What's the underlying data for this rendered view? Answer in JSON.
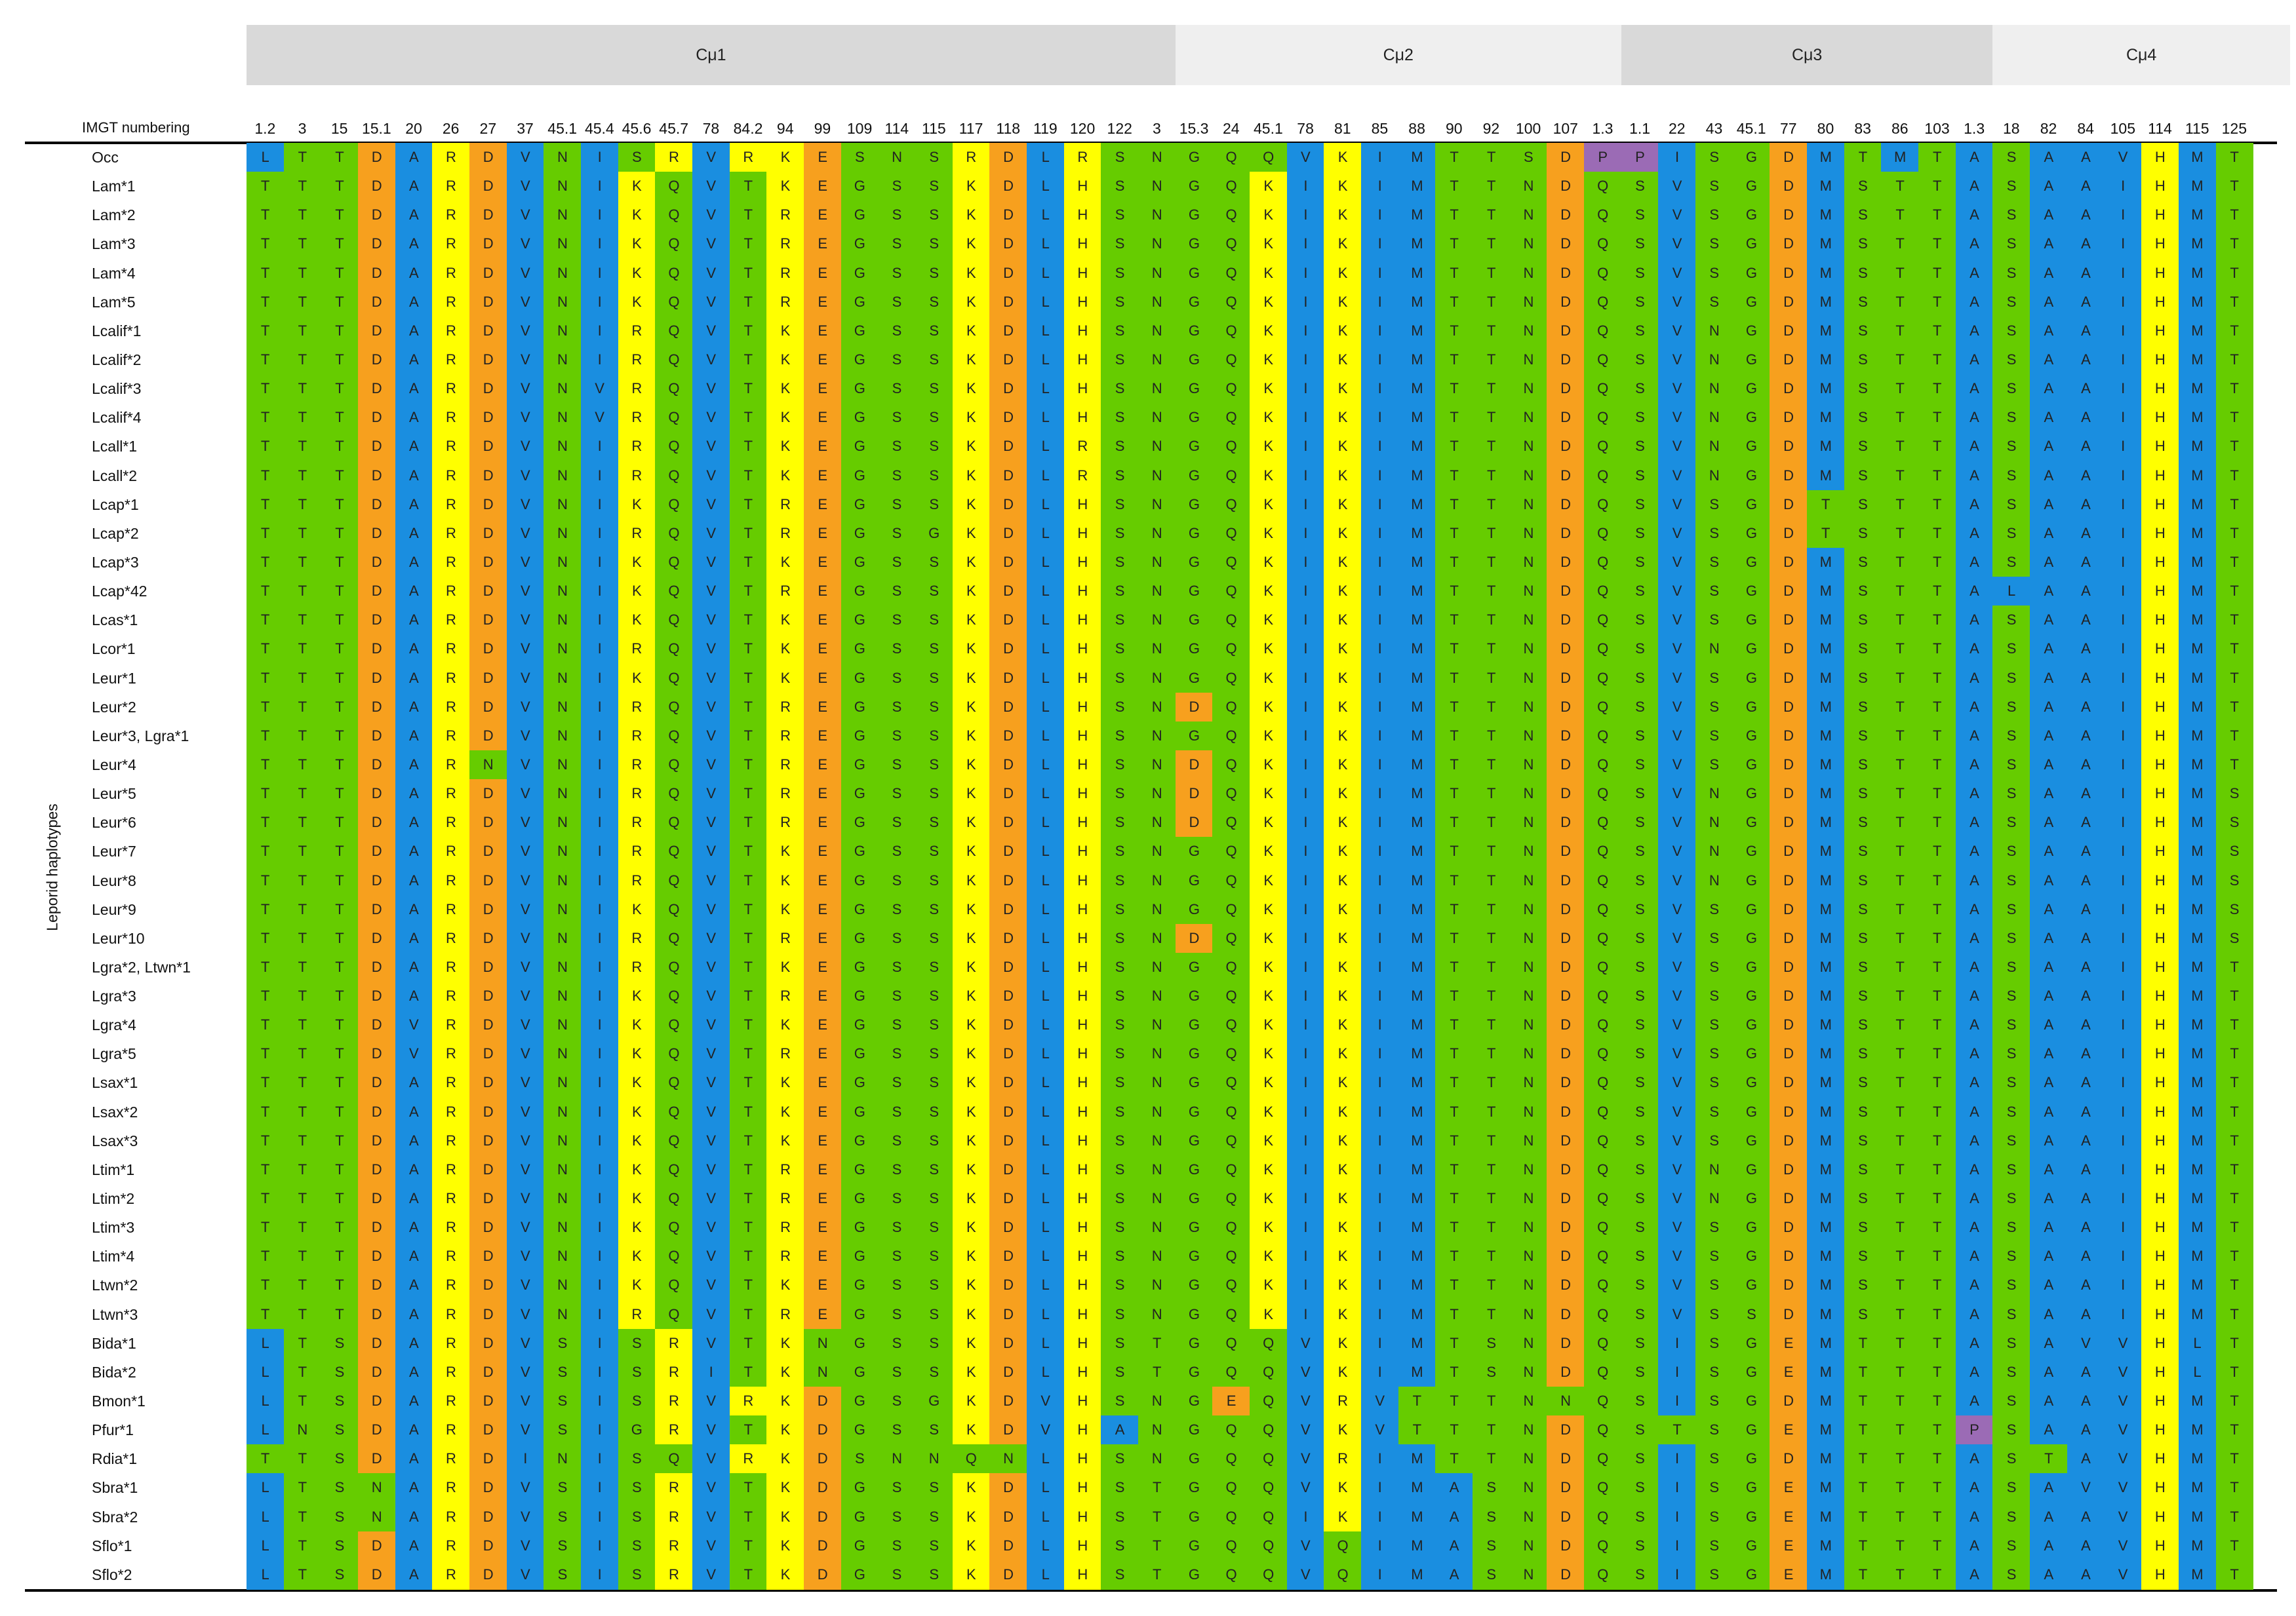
{
  "header": {
    "numbering_label": "IMGT numbering",
    "y_axis_label": "Leporid haplotypes"
  },
  "domains": [
    {
      "label": "Cμ1",
      "start": 0,
      "end": 25,
      "color": "#d9d9d9"
    },
    {
      "label": "Cμ2",
      "start": 25,
      "end": 37,
      "color": "#efefef"
    },
    {
      "label": "Cμ3",
      "start": 37,
      "end": 47,
      "color": "#d9d9d9"
    },
    {
      "label": "Cμ4",
      "start": 47,
      "end": 55,
      "color": "#efefef"
    }
  ],
  "positions": [
    "1.2",
    "3",
    "15",
    "15.1",
    "20",
    "26",
    "27",
    "37",
    "45.1",
    "45.4",
    "45.6",
    "45.7",
    "78",
    "84.2",
    "94",
    "99",
    "109",
    "114",
    "115",
    "117",
    "118",
    "119",
    "120",
    "122",
    "3",
    "15.3",
    "24",
    "45.1",
    "78",
    "81",
    "85",
    "88",
    "90",
    "92",
    "100",
    "107",
    "1.3",
    "1.1",
    "22",
    "43",
    "45.1",
    "77",
    "80",
    "83",
    "86",
    "103",
    "1.3",
    "18",
    "82",
    "84",
    "105",
    "114",
    "115",
    "125"
  ],
  "residue_colors": {
    "T": "#66cc00",
    "S": "#66cc00",
    "N": "#66cc00",
    "Q": "#66cc00",
    "G": "#66cc00",
    "D": "#f7a01e",
    "E": "#f7a01e",
    "R": "#ffff00",
    "K": "#ffff00",
    "H": "#ffff00",
    "A": "#1a8ee0",
    "V": "#1a8ee0",
    "I": "#1a8ee0",
    "L": "#1a8ee0",
    "M": "#1a8ee0",
    "P": "#9b6bb5"
  },
  "rows": [
    {
      "name": "Occ",
      "seq": "LTTDARDVNISRVRKESNSRDLRSNGQQVKIMTTSDPPISGDMTMTASAAVHMT"
    },
    {
      "name": "Lam*1",
      "seq": "TTTDARDVNIKQVTKEGSSKDLHSNGQKIKIMTTNDQSVSGDMSTTASAAIHMT"
    },
    {
      "name": "Lam*2",
      "seq": "TTTDARDVNIKQVTREGSSKDLHSNGQKIKIMTTNDQSVSGDMSTTASAAIHMT"
    },
    {
      "name": "Lam*3",
      "seq": "TTTDARDVNIKQVTREGSSKDLHSNGQKIKIMTTNDQSVSGDMSTTASAAIHMT"
    },
    {
      "name": "Lam*4",
      "seq": "TTTDARDVNIKQVTREGSSKDLHSNGQKIKIMTTNDQSVSGDMSTTASAAIHMT"
    },
    {
      "name": "Lam*5",
      "seq": "TTTDARDVNIKQVTREGSSKDLHSNGQKIKIMTTNDQSVSGDMSTTASAAIHMT"
    },
    {
      "name": "Lcalif*1",
      "seq": "TTTDARDVNIRQVTKEGSSKDLHSNGQKIKIMTTNDQSVNGDMSTTASAAIHMT"
    },
    {
      "name": "Lcalif*2",
      "seq": "TTTDARDVNIRQVTKEGSSKDLHSNGQKIKIMTTNDQSVNGDMSTTASAAIHMT"
    },
    {
      "name": "Lcalif*3",
      "seq": "TTTDARDVNVRQVTKEGSSKDLHSNGQKIKIMTTNDQSVNGDMSTTASAAIHMT"
    },
    {
      "name": "Lcalif*4",
      "seq": "TTTDARDVNVRQVTKEGSSKDLHSNGQKIKIMTTNDQSVNGDMSTTASAAIHMT"
    },
    {
      "name": "Lcall*1",
      "seq": "TTTDARDVNIRQVTKEGSSKDLRSNGQKIKIMTTNDQSVNGDMSTTASAAIHMT"
    },
    {
      "name": "Lcall*2",
      "seq": "TTTDARDVNIRQVTKEGSSKDLRSNGQKIKIMTTNDQSVNGDMSTTASAAIHMT"
    },
    {
      "name": "Lcap*1",
      "seq": "TTTDARDVNIKQVTREGSSKDLHSNGQKIKIMTTNDQSVSGDTSTTASAAIHMT"
    },
    {
      "name": "Lcap*2",
      "seq": "TTTDARDVNIRQVTREGSGKDLHSNGQKIKIMTTNDQSVSGDTSTTASAAIHMT"
    },
    {
      "name": "Lcap*3",
      "seq": "TTTDARDVNIKQVTKEGSSKDLHSNGQKIKIMTTNDQSVSGDMSTTASAAIHMT"
    },
    {
      "name": "Lcap*42",
      "seq": "TTTDARDVNIKQVTREGSSKDLHSNGQKIKIMTTNDQSVSGDMSTTALAAIHMT"
    },
    {
      "name": "Lcas*1",
      "seq": "TTTDARDVNIKQVTKEGSSKDLHSNGQKIKIMTTNDQSVSGDMSTTASAAIHMT"
    },
    {
      "name": "Lcor*1",
      "seq": "TTTDARDVNIRQVTKEGSSKDLHSNGQKIKIMTTNDQSVNGDMSTTASAAIHMT"
    },
    {
      "name": "Leur*1",
      "seq": "TTTDARDVNIKQVTKEGSSKDLHSNGQKIKIMTTNDQSVSGDMSTTASAAIHMT"
    },
    {
      "name": "Leur*2",
      "seq": "TTTDARDVNIRQVTREGSSKDLHSNDQKIKIMTTNDQSVSGDMSTTASAAIHMT"
    },
    {
      "name": "Leur*3, Lgra*1",
      "seq": "TTTDARDVNIRQVTREGSSKDLHSNGQKIKIMTTNDQSVSGDMSTTASAAIHMT"
    },
    {
      "name": "Leur*4",
      "seq": "TTTDARNVNIRQVTREGSSKDLHSNDQKIKIMTTNDQSVSGDMSTTASAAIHMT"
    },
    {
      "name": "Leur*5",
      "seq": "TTTDARDVNIRQVTREGSSKDLHSNDQKIKIMTTNDQSVNGDMSTTASAAIHMS"
    },
    {
      "name": "Leur*6",
      "seq": "TTTDARDVNIRQVTREGSSKDLHSNDQKIKIMTTNDQSVNGDMSTTASAAIHMS"
    },
    {
      "name": "Leur*7",
      "seq": "TTTDARDVNIRQVTKEGSSKDLHSNGQKIKIMTTNDQSVNGDMSTTASAAIHMS"
    },
    {
      "name": "Leur*8",
      "seq": "TTTDARDVNIRQVTKEGSSKDLHSNGQKIKIMTTNDQSVNGDMSTTASAAIHMS"
    },
    {
      "name": "Leur*9",
      "seq": "TTTDARDVNIKQVTKEGSSKDLHSNGQKIKIMTTNDQSVSGDMSTTASAAIHMS"
    },
    {
      "name": "Leur*10",
      "seq": "TTTDARDVNIRQVTREGSSKDLHSNDQKIKIMTTNDQSVSGDMSTTASAAIHMS"
    },
    {
      "name": "Lgra*2, Ltwn*1",
      "seq": "TTTDARDVNIRQVTKEGSSKDLHSNGQKIKIMTTNDQSVSGDMSTTASAAIHMT"
    },
    {
      "name": "Lgra*3",
      "seq": "TTTDARDVNIKQVTREGSSKDLHSNGQKIKIMTTNDQSVSGDMSTTASAAIHMT"
    },
    {
      "name": "Lgra*4",
      "seq": "TTTDVRDVNIKQVTKEGSSKDLHSNGQKIKIMTTNDQSVSGDMSTTASAAIHMT"
    },
    {
      "name": "Lgra*5",
      "seq": "TTTDVRDVNIKQVTREGSSKDLHSNGQKIKIMTTNDQSVSGDMSTTASAAIHMT"
    },
    {
      "name": "Lsax*1",
      "seq": "TTTDARDVNIKQVTKEGSSKDLHSNGQKIKIMTTNDQSVSGDMSTTASAAIHMT"
    },
    {
      "name": "Lsax*2",
      "seq": "TTTDARDVNIKQVTKEGSSKDLHSNGQKIKIMTTNDQSVSGDMSTTASAAIHMT"
    },
    {
      "name": "Lsax*3",
      "seq": "TTTDARDVNIKQVTKEGSSKDLHSNGQKIKIMTTNDQSVSGDMSTTASAAIHMT"
    },
    {
      "name": "Ltim*1",
      "seq": "TTTDARDVNIKQVTREGSSKDLHSNGQKIKIMTTNDQSVNGDMSTTASAAIHMT"
    },
    {
      "name": "Ltim*2",
      "seq": "TTTDARDVNIKQVTREGSSKDLHSNGQKIKIMTTNDQSVNGDMSTTASAAIHMT"
    },
    {
      "name": "Ltim*3",
      "seq": "TTTDARDVNIKQVTREGSSKDLHSNGQKIKIMTTNDQSVSGDMSTTASAAIHMT"
    },
    {
      "name": "Ltim*4",
      "seq": "TTTDARDVNIKQVTREGSSKDLHSNGQKIKIMTTNDQSVSGDMSTTASAAIHMT"
    },
    {
      "name": "Ltwn*2",
      "seq": "TTTDARDVNIKQVTKEGSSKDLHSNGQKIKIMTTNDQSVSGDMSTTASAAIHMT"
    },
    {
      "name": "Ltwn*3",
      "seq": "TTTDARDVNIRQVTREGSSKDLHSNGQKIKIMTTNDQSVSSDMSTTASAAIHMT"
    },
    {
      "name": "Bida*1",
      "seq": "LTSDARDVSISRVTKNGSSKDLHSTGQQVKIMTSNDQSISGEMTTTASAVVHLT"
    },
    {
      "name": "Bida*2",
      "seq": "LTSDARDVSISRITKNGSSKDLHSTGQQVKIMTSNDQSISGEMTTTASAAVHLT"
    },
    {
      "name": "Bmon*1",
      "seq": "LTSDARDVSISRVRKDGSGKDVHSNGEQVRVTTTNNQSISGDMTTTASAAVHMT"
    },
    {
      "name": "Pfur*1",
      "seq": "LNSDARDVSIGRVTKDGSSKDVHANGQQVKVTTTNDQSTSGEMTTTPSAAVHMT"
    },
    {
      "name": "Rdia*1",
      "seq": "TTSDARDINISQVRKDSNNQNLHSNGQQVRIMTTNDQSISGDMTTTASTAVHMT"
    },
    {
      "name": "Sbra*1",
      "seq": "LTSNARDVSISRVTKDGSSKDLHSTGQQVKIMASNDQSISGEMTTTASAVVHMT"
    },
    {
      "name": "Sbra*2",
      "seq": "LTSNARDVSISRVTKDGSSKDLHSTGQQIKIMASNDQSISGEMTTTASAAVHMT"
    },
    {
      "name": "Sflo*1",
      "seq": "LTSDARDVSISRVTKDGSSKDLHSTGQQVQIMASNDQSISGEMTTTASAAVHMT"
    },
    {
      "name": "Sflo*2",
      "seq": "LTSDARDVSISRVTKDGSSKDLHSTGQQVQIMASNDQSISGEMTTTASAAVHMT"
    }
  ]
}
